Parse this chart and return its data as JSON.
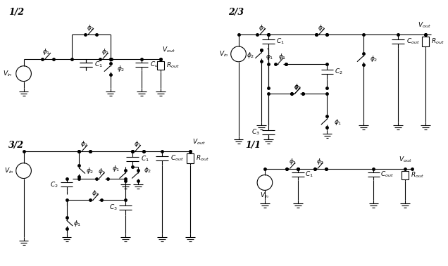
{
  "bg_color": "#ffffff",
  "line_color": "#000000",
  "lw": 0.8,
  "fs": 6.5,
  "title_fs": 9
}
